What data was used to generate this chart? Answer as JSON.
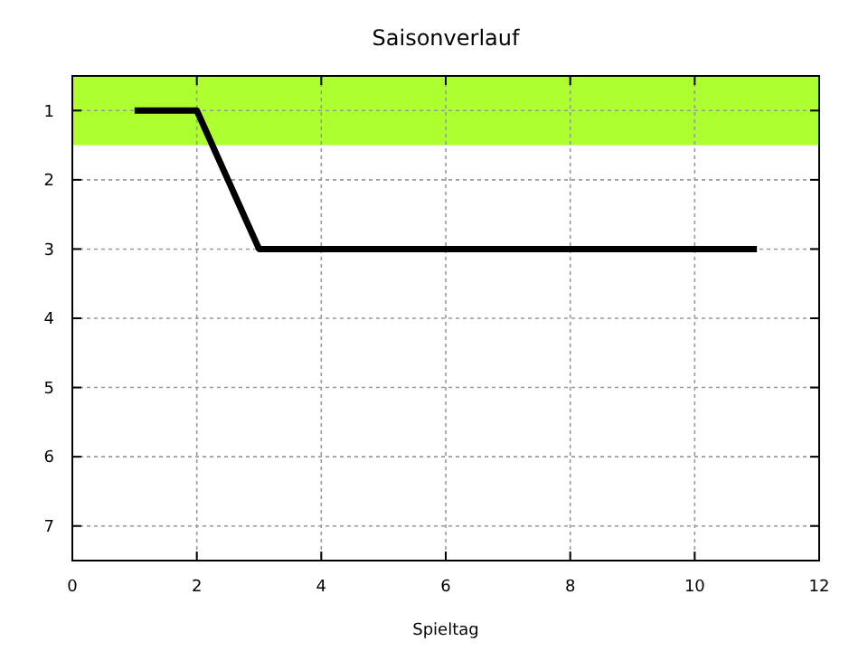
{
  "chart_data": {
    "type": "line",
    "title": "Saisonverlauf",
    "xlabel": "Spieltag",
    "x": [
      1,
      2,
      3,
      4,
      5,
      6,
      7,
      8,
      9,
      10,
      11
    ],
    "series": [
      {
        "color": "#000000",
        "values": [
          1,
          1,
          3,
          3,
          3,
          3,
          3,
          3,
          3,
          3,
          3
        ]
      }
    ],
    "xlim": [
      0,
      12
    ],
    "xticks": [
      0,
      2,
      4,
      6,
      8,
      10,
      12
    ],
    "ylim": [
      7.5,
      0.5
    ],
    "yticks": [
      1,
      2,
      3,
      4,
      5,
      6,
      7
    ],
    "bands": [
      {
        "axis": "y",
        "from": 0.5,
        "to": 1.5,
        "color": "#adff2f"
      }
    ],
    "grid": true,
    "marker": "none",
    "line_style": "solid"
  }
}
